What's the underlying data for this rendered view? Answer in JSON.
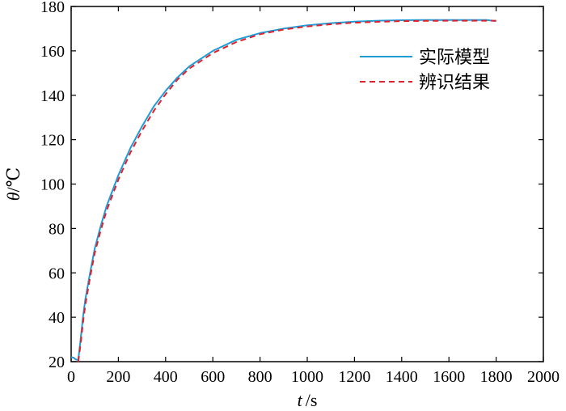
{
  "chart_data": {
    "type": "line",
    "xlabel_var": "t",
    "xlabel_unit": "/s",
    "ylabel_var": "θ",
    "ylabel_unit": "/℃",
    "xlim": [
      0,
      2000
    ],
    "ylim": [
      20,
      180
    ],
    "xticks": [
      0,
      200,
      400,
      600,
      800,
      1000,
      1200,
      1400,
      1600,
      1800,
      2000
    ],
    "yticks": [
      20,
      40,
      60,
      80,
      100,
      120,
      140,
      160,
      180
    ],
    "grid": false,
    "legend_position": "top-right",
    "series": [
      {
        "name": "实际模型",
        "color": "#1f9bd7",
        "dash": "solid",
        "points": [
          [
            0,
            22
          ],
          [
            10,
            21.8
          ],
          [
            20,
            21
          ],
          [
            30,
            20.8
          ],
          [
            40,
            30
          ],
          [
            50,
            40
          ],
          [
            60,
            48
          ],
          [
            80,
            60
          ],
          [
            100,
            71
          ],
          [
            125,
            81
          ],
          [
            150,
            90
          ],
          [
            200,
            104
          ],
          [
            250,
            116
          ],
          [
            300,
            126
          ],
          [
            350,
            135
          ],
          [
            400,
            142
          ],
          [
            450,
            148
          ],
          [
            500,
            153
          ],
          [
            600,
            160
          ],
          [
            700,
            165
          ],
          [
            800,
            168
          ],
          [
            900,
            170
          ],
          [
            1000,
            171.5
          ],
          [
            1100,
            172.5
          ],
          [
            1200,
            173.2
          ],
          [
            1300,
            173.6
          ],
          [
            1400,
            173.8
          ],
          [
            1500,
            173.9
          ],
          [
            1600,
            173.9
          ],
          [
            1700,
            173.9
          ],
          [
            1760,
            173.9
          ],
          [
            1800,
            173.4
          ]
        ]
      },
      {
        "name": "辨识结果",
        "color": "#e0202a",
        "dash": "dashed",
        "points": [
          [
            30,
            20
          ],
          [
            40,
            28
          ],
          [
            50,
            37.5
          ],
          [
            60,
            45.5
          ],
          [
            80,
            58
          ],
          [
            100,
            69
          ],
          [
            125,
            79
          ],
          [
            150,
            88
          ],
          [
            200,
            102
          ],
          [
            250,
            114
          ],
          [
            300,
            124
          ],
          [
            350,
            133
          ],
          [
            400,
            140.5
          ],
          [
            450,
            147
          ],
          [
            500,
            152
          ],
          [
            600,
            159
          ],
          [
            700,
            164
          ],
          [
            800,
            167.5
          ],
          [
            900,
            169.6
          ],
          [
            1000,
            171
          ],
          [
            1100,
            172
          ],
          [
            1200,
            172.7
          ],
          [
            1300,
            173.1
          ],
          [
            1400,
            173.4
          ],
          [
            1500,
            173.5
          ],
          [
            1600,
            173.6
          ],
          [
            1700,
            173.6
          ],
          [
            1800,
            173.6
          ]
        ]
      }
    ]
  }
}
